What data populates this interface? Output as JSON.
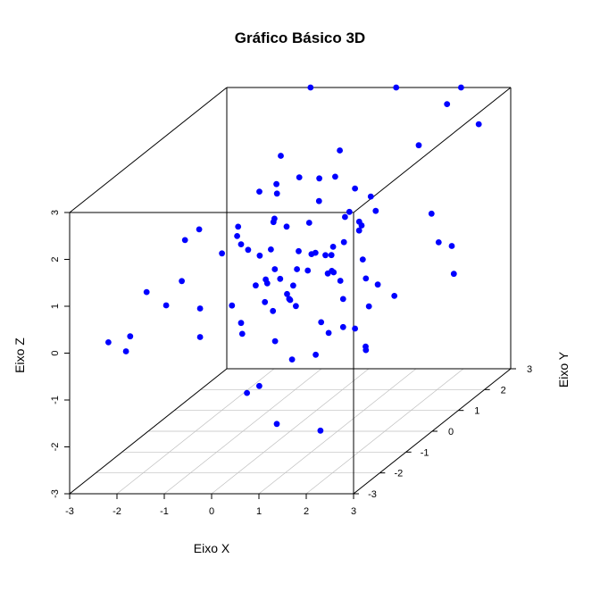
{
  "chart_data": {
    "type": "scatter",
    "projection": "3d-perspective-box",
    "title": "Gráfico Básico 3D",
    "xlabel": "Eixo X",
    "ylabel": "Eixo Y",
    "zlabel": "Eixo Z",
    "xlim": [
      -3,
      3
    ],
    "ylim": [
      -3,
      3
    ],
    "zlim": [
      -3,
      3
    ],
    "xticks": [
      "-3",
      "-2",
      "-1",
      "0",
      "1",
      "2",
      "3"
    ],
    "yticks": [
      "-3",
      "-2",
      "-1",
      "0",
      "1",
      "2",
      "3"
    ],
    "zticks": [
      "-3",
      "-2",
      "-1",
      "0",
      "1",
      "2",
      "3"
    ],
    "grid": "on the X-Y floor plane",
    "point_color": "#0000ff",
    "points": [
      {
        "x": -1.23,
        "y": 3.0,
        "z": 3.0
      },
      {
        "x": 0.58,
        "y": 3.0,
        "z": 3.0
      },
      {
        "x": 1.95,
        "y": 3.0,
        "z": 3.0
      },
      {
        "x": 2.07,
        "y": 2.25,
        "z": 2.98
      },
      {
        "x": 2.95,
        "y": 1.87,
        "z": 2.72
      },
      {
        "x": 1.05,
        "y": 0.0,
        "z": 2.99
      },
      {
        "x": 2.33,
        "y": 0.7,
        "z": 2.79
      },
      {
        "x": -1.0,
        "y": -2.21,
        "z": 2.06
      },
      {
        "x": -1.11,
        "y": -1.47,
        "z": 1.96
      },
      {
        "x": -0.23,
        "y": -0.76,
        "z": 2.45
      },
      {
        "x": 0.03,
        "y": -0.56,
        "z": 2.32
      },
      {
        "x": -0.38,
        "y": 0.33,
        "z": 2.73
      },
      {
        "x": -0.07,
        "y": -0.4,
        "z": 2.45
      },
      {
        "x": 0.17,
        "y": 0.04,
        "z": 2.4
      },
      {
        "x": 0.51,
        "y": 0.19,
        "z": 2.31
      },
      {
        "x": 0.95,
        "y": 0.0,
        "z": 2.43
      },
      {
        "x": 1.37,
        "y": 0.0,
        "z": 2.18
      },
      {
        "x": 1.67,
        "y": 0.06,
        "z": 1.98
      },
      {
        "x": -0.42,
        "y": -1.23,
        "z": 1.91
      },
      {
        "x": 0.11,
        "y": -0.8,
        "z": 1.89
      },
      {
        "x": 0.61,
        "y": 0.0,
        "z": 1.91
      },
      {
        "x": 1.25,
        "y": 0.0,
        "z": 1.68
      },
      {
        "x": 1.67,
        "y": 0.25,
        "z": 1.59
      },
      {
        "x": -0.02,
        "y": -0.6,
        "z": 1.73
      },
      {
        "x": -0.38,
        "y": -1.34,
        "z": 1.76
      },
      {
        "x": -0.6,
        "y": -1.52,
        "z": 1.47
      },
      {
        "x": 0.19,
        "y": -0.48,
        "z": 1.58
      },
      {
        "x": 0.53,
        "y": -0.23,
        "z": 1.55
      },
      {
        "x": 1.25,
        "y": -0.62,
        "z": 1.21
      },
      {
        "x": 0.97,
        "y": 0.34,
        "z": 1.42
      },
      {
        "x": 1.23,
        "y": 0.41,
        "z": 1.1
      },
      {
        "x": 1.51,
        "y": 0.0,
        "z": 1.39
      },
      {
        "x": 2.3,
        "y": 1.24,
        "z": 1.09
      },
      {
        "x": -0.03,
        "y": -1.11,
        "z": 1.24
      },
      {
        "x": -0.55,
        "y": -0.88,
        "z": 1.38
      },
      {
        "x": -0.29,
        "y": -1.08,
        "z": 1.35
      },
      {
        "x": -0.13,
        "y": -0.5,
        "z": 1.1
      },
      {
        "x": 0.09,
        "y": -0.75,
        "z": 0.79
      },
      {
        "x": 0.35,
        "y": -0.31,
        "z": 0.98
      },
      {
        "x": 0.5,
        "y": 0.06,
        "z": 0.78
      },
      {
        "x": 0.85,
        "y": -0.19,
        "z": 0.84
      },
      {
        "x": 1.03,
        "y": 0.19,
        "z": 0.95
      },
      {
        "x": -1.7,
        "y": -2.41,
        "z": 1.04
      },
      {
        "x": -1.51,
        "y": -1.41,
        "z": 0.83
      },
      {
        "x": -1.42,
        "y": -2.17,
        "z": 0.65
      },
      {
        "x": -0.67,
        "y": -2.23,
        "z": 0.61
      },
      {
        "x": -0.07,
        "y": -1.19,
        "z": 0.64
      },
      {
        "x": -0.18,
        "y": -0.61,
        "z": 0.51
      },
      {
        "x": 0.52,
        "y": -0.68,
        "z": 0.76
      },
      {
        "x": 0.91,
        "y": -0.07,
        "z": 0.79
      },
      {
        "x": 1.23,
        "y": 0.55,
        "z": 0.42
      },
      {
        "x": 0.41,
        "y": -0.07,
        "z": 0.46
      },
      {
        "x": 0.34,
        "y": -0.5,
        "z": 0.33
      },
      {
        "x": -0.02,
        "y": -0.84,
        "z": 0.53
      },
      {
        "x": 0.02,
        "y": -1.0,
        "z": 0.2
      },
      {
        "x": 0.85,
        "y": -0.1,
        "z": 0.41
      },
      {
        "x": 2.69,
        "y": 0.81,
        "z": 0.67
      },
      {
        "x": 2.85,
        "y": 1.02,
        "z": 0.5
      },
      {
        "x": 1.6,
        "y": 0.0,
        "z": 0.26
      },
      {
        "x": 1.06,
        "y": 0.0,
        "z": 0.21
      },
      {
        "x": 1.79,
        "y": 0.11,
        "z": 0.08
      },
      {
        "x": 2.13,
        "y": 0.13,
        "z": -0.17
      },
      {
        "x": 0.46,
        "y": -0.87,
        "z": 0.21
      },
      {
        "x": -0.56,
        "y": -1.21,
        "z": 0.22
      },
      {
        "x": 0.16,
        "y": -0.41,
        "z": 0.11
      },
      {
        "x": 2.75,
        "y": 1.28,
        "z": -0.21
      },
      {
        "x": -1.98,
        "y": -2.53,
        "z": 0.15
      },
      {
        "x": -2.28,
        "y": -2.82,
        "z": 0.15
      },
      {
        "x": -1.92,
        "y": -2.8,
        "z": -0.05
      },
      {
        "x": -0.72,
        "y": -2.14,
        "z": -0.04
      },
      {
        "x": -0.04,
        "y": -1.76,
        "z": -0.14
      },
      {
        "x": -0.29,
        "y": -1.35,
        "z": -0.09
      },
      {
        "x": 0.14,
        "y": -0.91,
        "z": -0.03
      },
      {
        "x": 0.53,
        "y": -0.74,
        "z": 0.0
      },
      {
        "x": 1.18,
        "y": -0.11,
        "z": -0.13
      },
      {
        "x": 1.72,
        "y": -0.1,
        "z": -0.29
      },
      {
        "x": 1.63,
        "y": -0.47,
        "z": -0.6
      },
      {
        "x": 2.11,
        "y": -0.92,
        "z": -0.86
      },
      {
        "x": 0.98,
        "y": -0.3,
        "z": -0.77
      },
      {
        "x": 0.35,
        "y": -1.21,
        "z": -0.54
      },
      {
        "x": 0.4,
        "y": -0.65,
        "z": -1.18
      },
      {
        "x": 1.06,
        "y": -0.94,
        "z": -0.95
      },
      {
        "x": 0.26,
        "y": -2.12,
        "z": -1.24
      },
      {
        "x": 0.2,
        "y": -1.54,
        "z": -1.35
      },
      {
        "x": 0.78,
        "y": -1.92,
        "z": -1.99
      },
      {
        "x": 1.67,
        "y": -1.86,
        "z": -2.16
      },
      {
        "x": 0.0,
        "y": 0.0,
        "z": -0.2
      },
      {
        "x": 0.96,
        "y": -0.55,
        "z": -0.43
      },
      {
        "x": 1.39,
        "y": -0.49,
        "z": -0.56
      },
      {
        "x": 2.02,
        "y": -0.77,
        "z": -0.85
      },
      {
        "x": -0.05,
        "y": -0.29,
        "z": 0.38
      },
      {
        "x": 0.45,
        "y": 0.0,
        "z": 0.78
      },
      {
        "x": 1.57,
        "y": -0.2,
        "z": 1.56
      },
      {
        "x": 1.09,
        "y": -0.38,
        "z": 0.59
      },
      {
        "x": 0.83,
        "y": 0.16,
        "z": 0.32
      }
    ]
  }
}
